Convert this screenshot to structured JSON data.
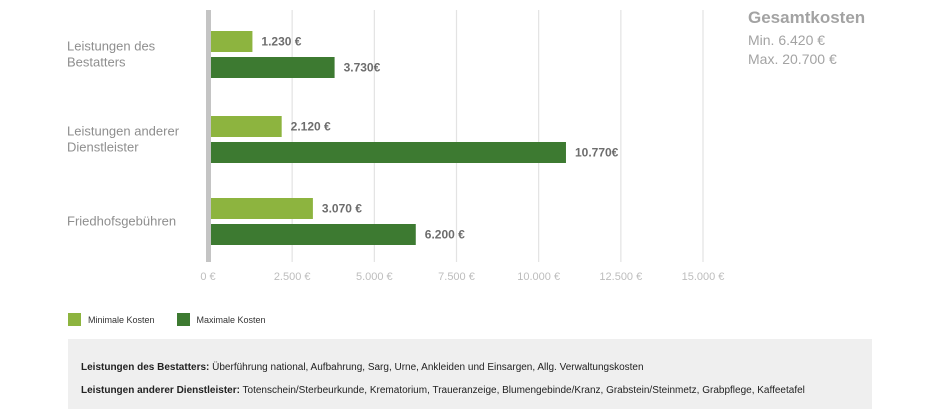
{
  "chart_data": {
    "type": "bar",
    "orientation": "horizontal",
    "categories": [
      [
        "Leistungen des",
        "Bestatters"
      ],
      [
        "Leistungen anderer",
        "Dienstleister"
      ],
      [
        "Friedhofsgebühren"
      ]
    ],
    "series": [
      {
        "name": "Minimale Kosten",
        "values": [
          1230,
          2120,
          3070
        ],
        "labels": [
          "1.230 €",
          "2.120 €",
          "3.070 €"
        ],
        "color": "#8db43f"
      },
      {
        "name": "Maximale Kosten",
        "values": [
          3730,
          10770,
          6200
        ],
        "labels": [
          "3.730€",
          "10.770€",
          "6.200 €"
        ],
        "color": "#3d7a31"
      }
    ],
    "xlim": [
      0,
      15000
    ],
    "ticks": [
      0,
      2500,
      5000,
      7500,
      10000,
      12500,
      15000
    ],
    "tick_labels": [
      "0 €",
      "2.500 €",
      "5.000 €",
      "7.500 €",
      "10.000 €",
      "12.500 €",
      "15.000 €"
    ],
    "grid": true,
    "legend_position": "bottom-left"
  },
  "totals": {
    "title": "Gesamtkosten",
    "min": "Min. 6.420 €",
    "max": "Max. 20.700 €"
  },
  "notes": [
    {
      "label": "Leistungen des Bestatters:",
      "text": " Überführung national, Aufbahrung, Sarg, Urne, Ankleiden und Einsargen, Allg. Verwaltungskosten"
    },
    {
      "label": "Leistungen anderer Dienstleister:",
      "text": " Totenschein/Sterbeurkunde, Krematorium, Traueranzeige, Blumengebinde/Kranz, Grabstein/Steinmetz, Grabpflege, Kaffeetafel"
    }
  ],
  "colors": {
    "axis": "#c4c4c4",
    "grid": "#e3e3e3"
  }
}
